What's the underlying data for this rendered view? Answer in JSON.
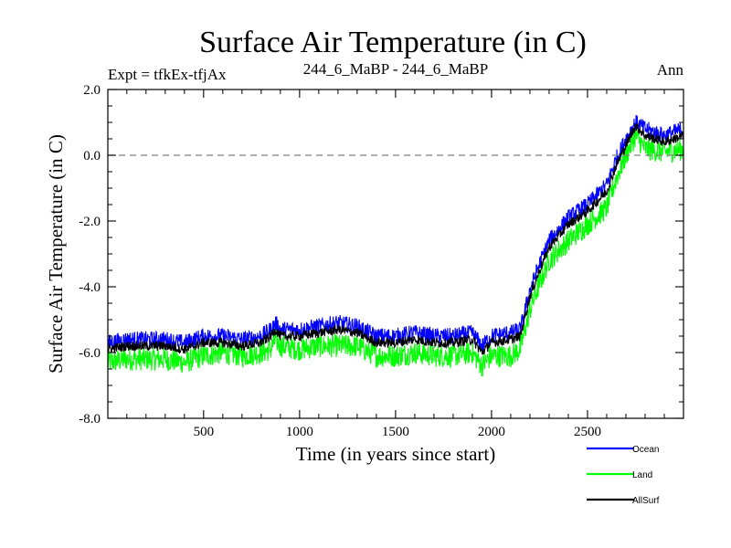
{
  "chart_data": {
    "type": "line",
    "title": "Surface Air Temperature (in C)",
    "subtitle_left": "Expt = tfkEx-tfjAx",
    "subtitle_center": "244_6_MaBP - 244_6_MaBP",
    "subtitle_right": "Ann",
    "xlabel": "Time (in years since start)",
    "ylabel": "Surface Air Temperature (in C)",
    "xlim": [
      1,
      3000
    ],
    "ylim": [
      -8.0,
      2.0
    ],
    "x_ticks": [
      500,
      1000,
      1500,
      2000,
      2500
    ],
    "x_tick_labels": [
      "500",
      "1000",
      "1500",
      "2000",
      "2500"
    ],
    "y_ticks": [
      2.0,
      0.0,
      -2.0,
      -4.0,
      -6.0,
      -8.0
    ],
    "y_tick_labels": [
      "2.0",
      "0.0",
      "-2.0",
      "-4.0",
      "-6.0",
      "-8.0"
    ],
    "reference_line": {
      "y": 0.0,
      "style": "dashed",
      "color": "#808080"
    },
    "grid": false,
    "legend_position": "bottom-right, outside plot",
    "x": [
      1,
      100,
      200,
      300,
      400,
      500,
      600,
      700,
      800,
      850,
      875,
      900,
      1000,
      1100,
      1200,
      1300,
      1400,
      1500,
      1600,
      1700,
      1800,
      1900,
      1950,
      2000,
      2100,
      2150,
      2200,
      2250,
      2300,
      2400,
      2500,
      2600,
      2650,
      2700,
      2750,
      2800,
      2900,
      3000
    ],
    "series": [
      {
        "name": "Ocean",
        "color": "#0000ff",
        "values": [
          -5.7,
          -5.6,
          -5.6,
          -5.6,
          -5.7,
          -5.5,
          -5.5,
          -5.6,
          -5.5,
          -5.3,
          -5.1,
          -5.3,
          -5.3,
          -5.2,
          -5.1,
          -5.2,
          -5.5,
          -5.5,
          -5.4,
          -5.5,
          -5.5,
          -5.4,
          -5.8,
          -5.5,
          -5.4,
          -5.3,
          -4.1,
          -3.3,
          -2.6,
          -1.9,
          -1.5,
          -0.9,
          -0.1,
          0.5,
          1.0,
          0.8,
          0.6,
          0.8
        ],
        "noise": 0.25
      },
      {
        "name": "Land",
        "color": "#00ff00",
        "values": [
          -6.3,
          -6.2,
          -6.2,
          -6.2,
          -6.3,
          -6.1,
          -6.0,
          -6.1,
          -6.0,
          -5.9,
          -5.6,
          -5.8,
          -5.9,
          -5.8,
          -5.8,
          -5.8,
          -6.1,
          -6.1,
          -6.0,
          -6.1,
          -6.1,
          -6.0,
          -6.4,
          -6.1,
          -6.1,
          -5.9,
          -4.7,
          -3.9,
          -3.2,
          -2.6,
          -2.1,
          -1.6,
          -0.7,
          0.0,
          0.6,
          0.2,
          0.1,
          0.2
        ],
        "noise": 0.35
      },
      {
        "name": "AllSurf",
        "color": "#000000",
        "values": [
          -5.9,
          -5.8,
          -5.8,
          -5.8,
          -5.9,
          -5.7,
          -5.7,
          -5.8,
          -5.7,
          -5.5,
          -5.3,
          -5.5,
          -5.5,
          -5.4,
          -5.3,
          -5.4,
          -5.7,
          -5.7,
          -5.6,
          -5.7,
          -5.7,
          -5.6,
          -6.0,
          -5.7,
          -5.6,
          -5.5,
          -4.3,
          -3.5,
          -2.8,
          -2.1,
          -1.7,
          -1.1,
          -0.3,
          0.3,
          0.9,
          0.6,
          0.4,
          0.6
        ],
        "noise": 0.15
      }
    ]
  }
}
